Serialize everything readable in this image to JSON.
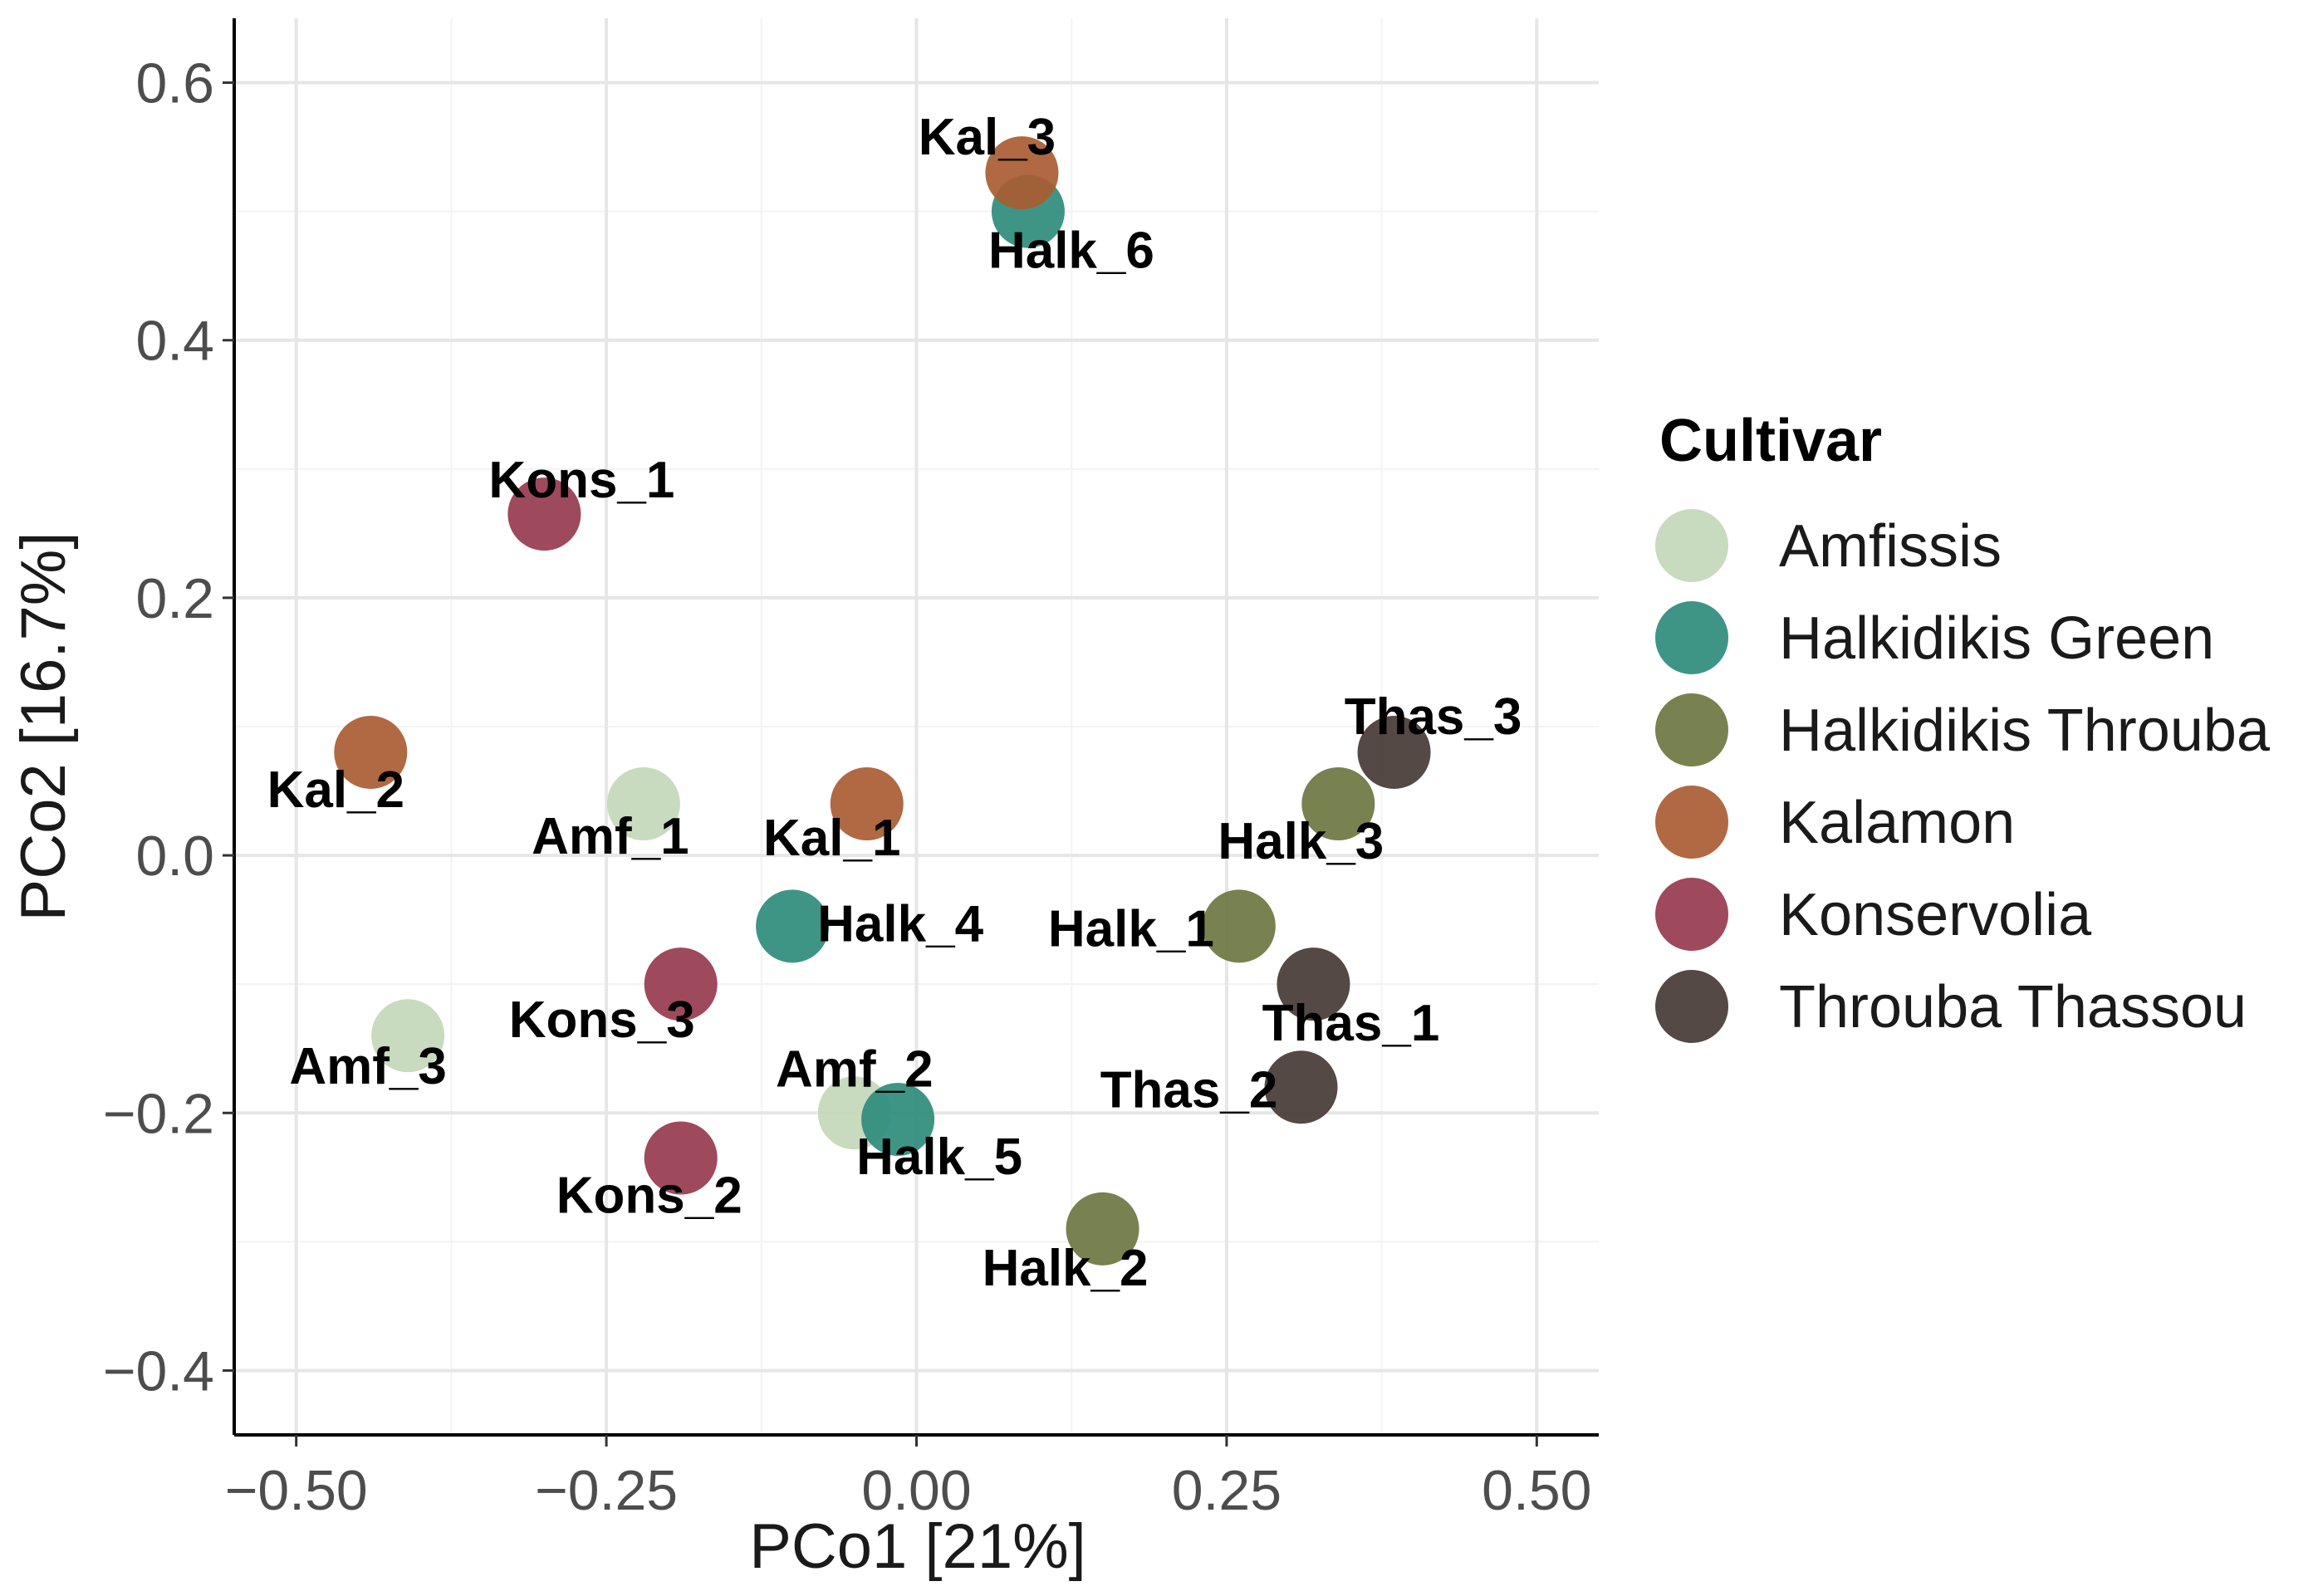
{
  "chart_data": {
    "type": "scatter",
    "title": "",
    "xlabel": "PCo1 [21%]",
    "ylabel": "PCo2 [16.7%]",
    "xlim": [
      -0.55,
      0.55
    ],
    "ylim": [
      -0.45,
      0.65
    ],
    "x_ticks": [
      -0.5,
      -0.25,
      0.0,
      0.25,
      0.5
    ],
    "x_tick_labels": [
      "−0.50",
      "−0.25",
      "0.00",
      "0.25",
      "0.50"
    ],
    "y_ticks": [
      -0.4,
      -0.2,
      0.0,
      0.2,
      0.4,
      0.6
    ],
    "y_tick_labels": [
      "−0.4",
      "−0.2",
      "0.0",
      "0.2",
      "0.4",
      "0.6"
    ],
    "grid": true,
    "legend": {
      "title": "Cultivar",
      "placement": "right"
    },
    "series": [
      {
        "name": "Amfissis",
        "color": "#c3d8b8",
        "points": [
          {
            "label": "Amf_1",
            "x": -0.22,
            "y": 0.04
          },
          {
            "label": "Amf_2",
            "x": -0.05,
            "y": -0.2
          },
          {
            "label": "Amf_3",
            "x": -0.41,
            "y": -0.14
          }
        ]
      },
      {
        "name": "Halkidikis Green",
        "color": "#2e8c7c",
        "points": [
          {
            "label": "Halk_4",
            "x": -0.1,
            "y": -0.055
          },
          {
            "label": "Halk_5",
            "x": -0.015,
            "y": -0.205
          },
          {
            "label": "Halk_6",
            "x": 0.09,
            "y": 0.5
          }
        ]
      },
      {
        "name": "Halkidikis Throuba",
        "color": "#6d7641",
        "points": [
          {
            "label": "Halk_1",
            "x": 0.26,
            "y": -0.055
          },
          {
            "label": "Halk_2",
            "x": 0.15,
            "y": -0.29
          },
          {
            "label": "Halk_3",
            "x": 0.34,
            "y": 0.04
          }
        ]
      },
      {
        "name": "Kalamon",
        "color": "#a95c32",
        "points": [
          {
            "label": "Kal_1",
            "x": -0.04,
            "y": 0.04
          },
          {
            "label": "Kal_2",
            "x": -0.44,
            "y": 0.08
          },
          {
            "label": "Kal_3",
            "x": 0.085,
            "y": 0.53
          }
        ]
      },
      {
        "name": "Konservolia",
        "color": "#973a4e",
        "points": [
          {
            "label": "Kons_1",
            "x": -0.3,
            "y": 0.265
          },
          {
            "label": "Kons_2",
            "x": -0.19,
            "y": -0.235
          },
          {
            "label": "Kons_3",
            "x": -0.19,
            "y": -0.1
          }
        ]
      },
      {
        "name": "Throuba Thassou",
        "color": "#473a35",
        "points": [
          {
            "label": "Thas_1",
            "x": 0.32,
            "y": -0.1
          },
          {
            "label": "Thas_2",
            "x": 0.31,
            "y": -0.18
          },
          {
            "label": "Thas_3",
            "x": 0.385,
            "y": 0.08
          }
        ]
      }
    ]
  }
}
